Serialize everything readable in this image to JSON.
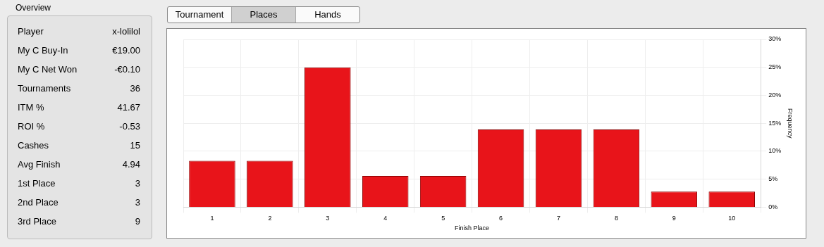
{
  "chart_data": [
    {
      "type": "other",
      "title": "Overview",
      "annotations": [
        "Player",
        "x-lolilol",
        "My C Buy-In",
        "€19.00",
        "My C Net Won",
        "-€0.10",
        "Tournaments",
        "36",
        "ITM %",
        "41.67",
        "ROI %",
        "-0.53",
        "Cashes",
        "15",
        "Avg Finish",
        "4.94",
        "1st Place",
        "3",
        "2nd Place",
        "3",
        "3rd Place",
        "9"
      ]
    },
    {
      "type": "bar",
      "annotations": [
        "Tournament",
        "Places",
        "Hands"
      ],
      "xlabel": "Finish Place",
      "ylabel": "Frequency",
      "categories": [
        "1",
        "2",
        "3",
        "4",
        "5",
        "6",
        "7",
        "8",
        "9",
        "10"
      ],
      "values": [
        8.3,
        8.3,
        25,
        5.6,
        5.6,
        13.9,
        13.9,
        13.9,
        2.8,
        2.8
      ],
      "color": "#e8141a",
      "ylim": [
        0,
        30
      ],
      "yticks": [
        {
          "value": 0,
          "label": "0%"
        },
        {
          "value": 5,
          "label": "5%"
        },
        {
          "value": 10,
          "label": "10%"
        },
        {
          "value": 15,
          "label": "15%"
        },
        {
          "value": 20,
          "label": "20%"
        },
        {
          "value": 25,
          "label": "25%"
        },
        {
          "value": 30,
          "label": "30%"
        }
      ],
      "grid": true
    }
  ]
}
